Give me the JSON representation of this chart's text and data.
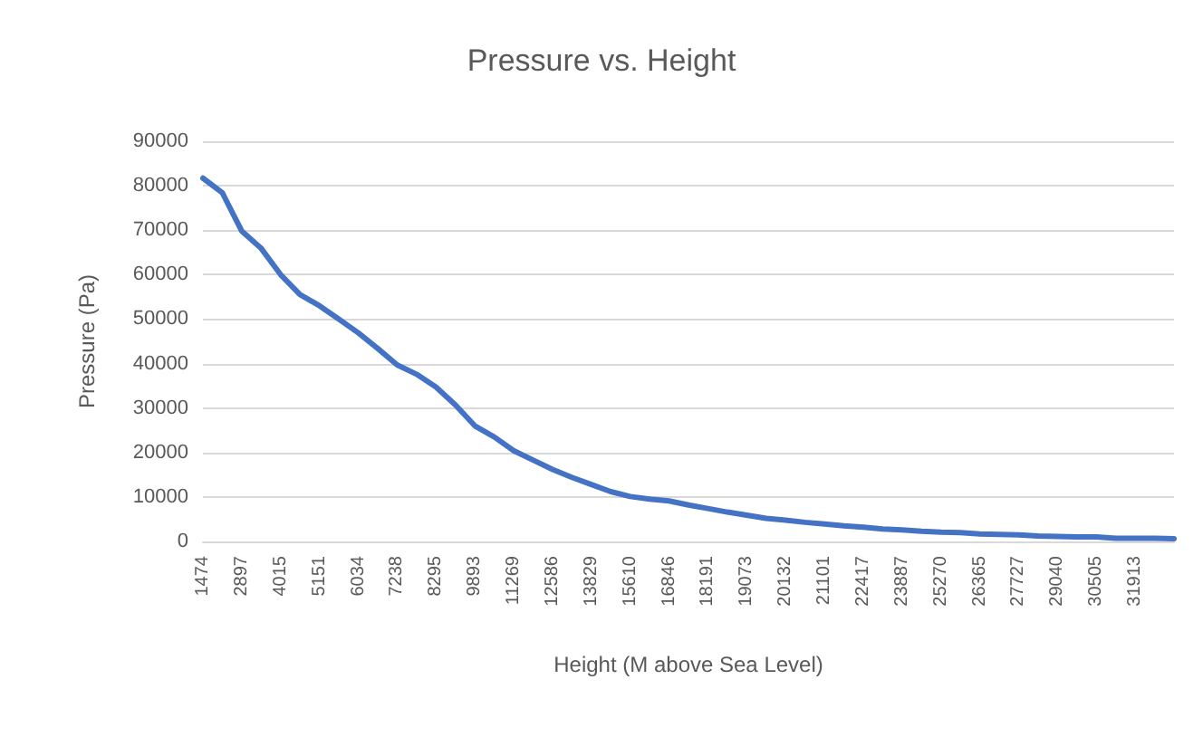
{
  "chart_data": {
    "type": "line",
    "title": "Pressure vs. Height",
    "xlabel": "Height (M above Sea Level)",
    "ylabel": "Pressure (Pa)",
    "categories": [
      "1474",
      null,
      "2897",
      null,
      "4015",
      null,
      "5151",
      null,
      "6034",
      null,
      "7238",
      null,
      "8295",
      null,
      "9893",
      null,
      "11269",
      null,
      "12586",
      null,
      "13829",
      null,
      "15610",
      null,
      "16846",
      null,
      "18191",
      null,
      "19073",
      null,
      "20132",
      null,
      "21101",
      null,
      "22417",
      null,
      "23887",
      null,
      "25270",
      null,
      "26365",
      null,
      "27727",
      null,
      "29040",
      null,
      "30505",
      null,
      "31913",
      null,
      null
    ],
    "series": [
      {
        "color": "#4472c4",
        "values": [
          81700,
          78400,
          69800,
          65900,
          60000,
          55500,
          53000,
          50000,
          46900,
          43400,
          39700,
          37600,
          34700,
          30700,
          26000,
          23500,
          20400,
          18300,
          16200,
          14400,
          12800,
          11200,
          10100,
          9500,
          9100,
          8200,
          7400,
          6600,
          5900,
          5200,
          4800,
          4300,
          3900,
          3500,
          3200,
          2800,
          2600,
          2300,
          2100,
          2000,
          1700,
          1600,
          1500,
          1200,
          1100,
          1000,
          1000,
          700,
          700,
          700,
          600
        ]
      }
    ],
    "ylim": [
      0,
      90000
    ],
    "yticks": [
      0,
      10000,
      20000,
      30000,
      40000,
      50000,
      60000,
      70000,
      80000,
      90000
    ],
    "grid": "y",
    "marker": "none",
    "line_style": "solid"
  }
}
